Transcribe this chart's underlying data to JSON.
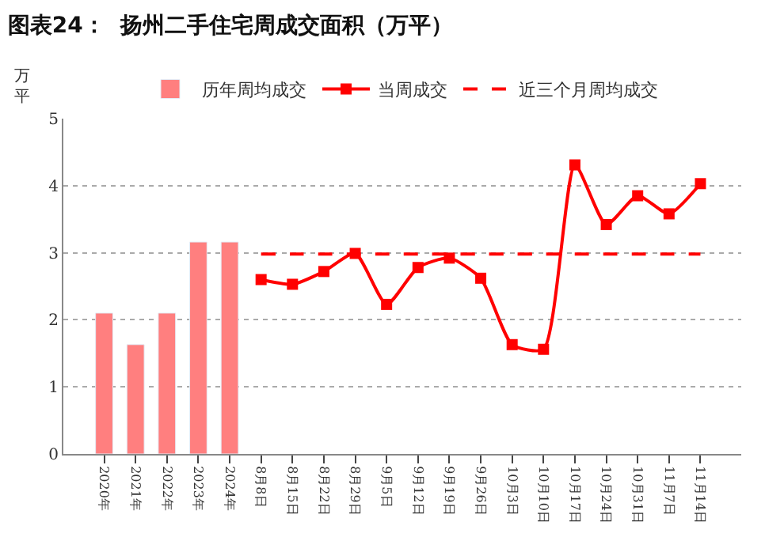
{
  "chart_data": {
    "type": "bar",
    "title": "图表24：  扬州二手住宅周成交面积（万平）",
    "ylabel": "万平",
    "categories": [
      "2020年",
      "2021年",
      "2022年",
      "2023年",
      "2024年",
      "8月8日",
      "8月15日",
      "8月22日",
      "8月29日",
      "9月5日",
      "9月12日",
      "9月19日",
      "9月26日",
      "10月3日",
      "10月10日",
      "10月17日",
      "10月24日",
      "10月31日",
      "11月7日",
      "11月14日"
    ],
    "series": [
      {
        "name": "历年周均成交",
        "color": "#ff7f7f",
        "values": [
          2.1,
          1.63,
          2.1,
          3.16,
          3.16,
          null,
          null,
          null,
          null,
          null,
          null,
          null,
          null,
          null,
          null,
          null,
          null,
          null,
          null,
          null
        ]
      },
      {
        "name": "当周成交",
        "type": "line",
        "color": "#ff0000",
        "marker": "square",
        "line_style": "solid",
        "values": [
          null,
          null,
          null,
          null,
          null,
          2.6,
          2.53,
          2.72,
          2.99,
          2.23,
          2.78,
          2.92,
          2.62,
          1.63,
          1.56,
          4.31,
          3.42,
          3.85,
          3.58,
          4.03
        ]
      },
      {
        "name": "近三个月周均成交",
        "type": "line",
        "color": "#ff0000",
        "marker": "none",
        "line_style": "dashed",
        "values": [
          null,
          null,
          null,
          null,
          null,
          2.98,
          2.98,
          2.98,
          2.98,
          2.98,
          2.98,
          2.98,
          2.98,
          2.98,
          2.98,
          2.98,
          2.98,
          2.98,
          2.98,
          2.98
        ]
      }
    ],
    "ylim": [
      0,
      5
    ],
    "yticks": [
      0,
      1,
      2,
      3,
      4,
      5
    ],
    "grid": "y",
    "legend": "top"
  }
}
